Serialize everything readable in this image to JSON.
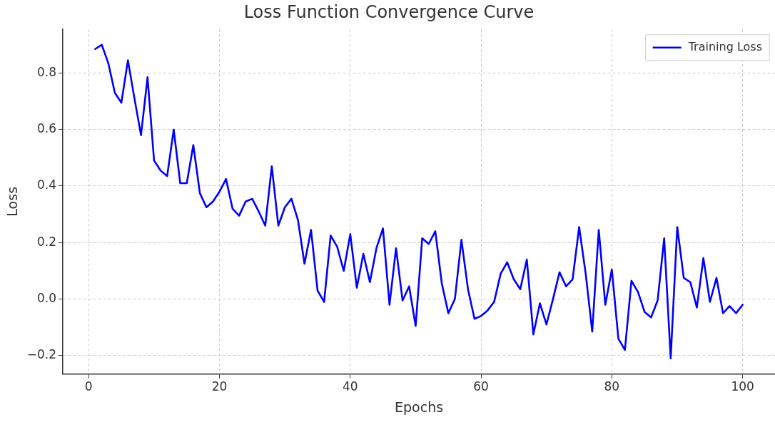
{
  "chart_data": {
    "type": "line",
    "title": "Loss Function Convergence Curve",
    "xlabel": "Epochs",
    "ylabel": "Loss",
    "x": [
      1,
      2,
      3,
      4,
      5,
      6,
      7,
      8,
      9,
      10,
      11,
      12,
      13,
      14,
      15,
      16,
      17,
      18,
      19,
      20,
      21,
      22,
      23,
      24,
      25,
      26,
      27,
      28,
      29,
      30,
      31,
      32,
      33,
      34,
      35,
      36,
      37,
      38,
      39,
      40,
      41,
      42,
      43,
      44,
      45,
      46,
      47,
      48,
      49,
      50,
      51,
      52,
      53,
      54,
      55,
      56,
      57,
      58,
      59,
      60,
      61,
      62,
      63,
      64,
      65,
      66,
      67,
      68,
      69,
      70,
      71,
      72,
      73,
      74,
      75,
      76,
      77,
      78,
      79,
      80,
      81,
      82,
      83,
      84,
      85,
      86,
      87,
      88,
      89,
      90,
      91,
      92,
      93,
      94,
      95,
      96,
      97,
      98,
      99,
      100
    ],
    "series": [
      {
        "name": "Training Loss",
        "color": "#0000ff",
        "values": [
          0.885,
          0.9,
          0.835,
          0.73,
          0.695,
          0.845,
          0.71,
          0.58,
          0.785,
          0.49,
          0.455,
          0.435,
          0.6,
          0.41,
          0.41,
          0.545,
          0.375,
          0.325,
          0.345,
          0.38,
          0.425,
          0.32,
          0.295,
          0.345,
          0.355,
          0.31,
          0.26,
          0.47,
          0.26,
          0.325,
          0.355,
          0.28,
          0.125,
          0.245,
          0.03,
          -0.01,
          0.225,
          0.185,
          0.1,
          0.23,
          0.04,
          0.16,
          0.06,
          0.18,
          0.25,
          -0.02,
          0.18,
          -0.005,
          0.045,
          -0.095,
          0.215,
          0.195,
          0.24,
          0.055,
          -0.05,
          0.0,
          0.21,
          0.035,
          -0.07,
          -0.06,
          -0.04,
          -0.01,
          0.09,
          0.13,
          0.07,
          0.035,
          0.14,
          -0.125,
          -0.015,
          -0.09,
          0.0,
          0.095,
          0.045,
          0.07,
          0.255,
          0.09,
          -0.115,
          0.245,
          -0.02,
          0.105,
          -0.14,
          -0.18,
          0.065,
          0.025,
          -0.045,
          -0.065,
          -0.005,
          0.215,
          -0.21,
          0.255,
          0.075,
          0.06,
          -0.03,
          0.145,
          -0.01,
          0.075,
          -0.05,
          -0.025,
          -0.05,
          -0.02
        ]
      }
    ],
    "xlim": [
      -3.95,
      104.95
    ],
    "xticks": [
      0,
      20,
      40,
      60,
      80,
      100
    ],
    "ylim": [
      -0.2655,
      0.9555
    ],
    "yticks": [
      {
        "value": -0.2,
        "label": "−0.2"
      },
      {
        "value": 0,
        "label": "0.0"
      },
      {
        "value": 0.2,
        "label": "0.2"
      },
      {
        "value": 0.4,
        "label": "0.4"
      },
      {
        "value": 0.6,
        "label": "0.6"
      },
      {
        "value": 0.8,
        "label": "0.8"
      }
    ],
    "grid": true,
    "legend": "top right",
    "line_style": "solid",
    "marker": "none"
  }
}
